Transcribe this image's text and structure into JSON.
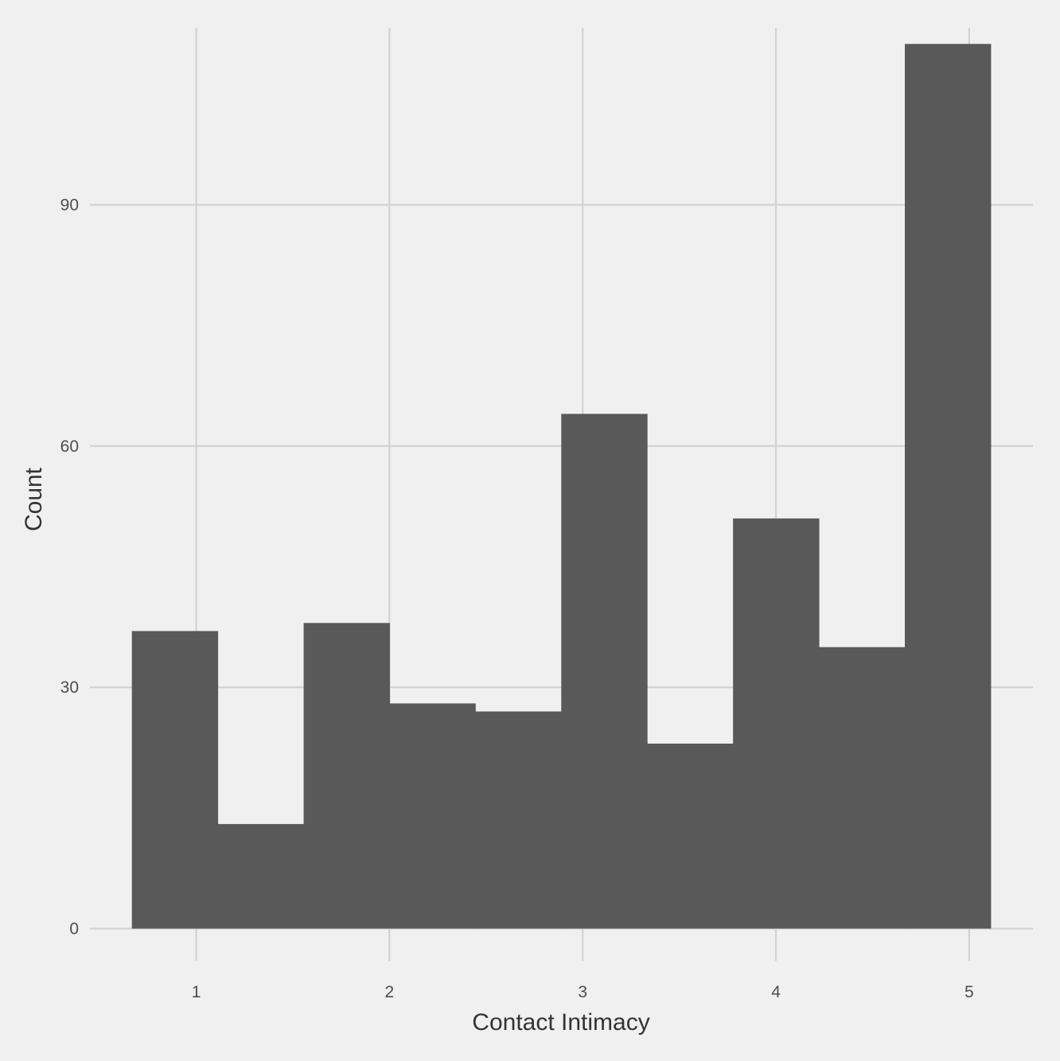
{
  "chart_data": {
    "type": "bar",
    "subtype": "histogram",
    "xlabel": "Contact Intimacy",
    "ylabel": "Count",
    "xlim": [
      0.45,
      5.33
    ],
    "ylim": [
      -4,
      112
    ],
    "x_ticks": [
      1,
      2,
      3,
      4,
      5
    ],
    "y_ticks": [
      0,
      30,
      60,
      90
    ],
    "bins": [
      {
        "start": 0.667,
        "end": 1.111,
        "count": 37
      },
      {
        "start": 1.111,
        "end": 1.556,
        "count": 13
      },
      {
        "start": 1.556,
        "end": 2.0,
        "count": 38
      },
      {
        "start": 2.0,
        "end": 2.444,
        "count": 28
      },
      {
        "start": 2.444,
        "end": 2.889,
        "count": 27
      },
      {
        "start": 2.889,
        "end": 3.333,
        "count": 64
      },
      {
        "start": 3.333,
        "end": 3.778,
        "count": 23
      },
      {
        "start": 3.778,
        "end": 4.222,
        "count": 51
      },
      {
        "start": 4.222,
        "end": 4.667,
        "count": 35
      },
      {
        "start": 4.667,
        "end": 5.111,
        "count": 110
      }
    ],
    "grid": true,
    "legend": "none",
    "colors": {
      "background": "#f0f0f0",
      "grid": "#d2d2d2",
      "bar_fill": "#595959"
    }
  }
}
